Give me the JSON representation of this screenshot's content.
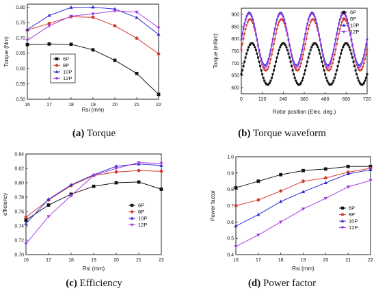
{
  "colors": {
    "6P": "#111111",
    "8P": "#d13b2c",
    "10P": "#2f2fd6",
    "12P": "#a43ee3"
  },
  "captions": [
    {
      "letter": "(a)",
      "text": " Torque"
    },
    {
      "letter": "(b)",
      "text": " Torque waveform"
    },
    {
      "letter": "(c)",
      "text": " Efficiency"
    },
    {
      "letter": "(d)",
      "text": " Power factor"
    }
  ],
  "chart_data": [
    {
      "type": "line",
      "title": "",
      "xlabel": "Rsi (mm)",
      "ylabel": "Torque (Nm)",
      "xlim": [
        16,
        22
      ],
      "ylim": [
        0.5,
        0.81
      ],
      "xticks": [
        16,
        17,
        18,
        19,
        20,
        21,
        22
      ],
      "yticks": [
        0.5,
        0.55,
        0.6,
        0.65,
        0.7,
        0.75,
        0.8
      ],
      "ytick_labels": [
        "0.50",
        "0.55",
        "0.60",
        "0.65",
        "0.70",
        "0.75",
        "0.80"
      ],
      "grid": false,
      "legend": "center-left",
      "x": [
        16,
        17,
        18,
        19,
        20,
        21,
        22
      ],
      "series": [
        {
          "name": "6P",
          "marker": "square",
          "values": [
            0.678,
            0.68,
            0.679,
            0.661,
            0.627,
            0.584,
            0.516
          ]
        },
        {
          "name": "8P",
          "marker": "circle",
          "values": [
            0.725,
            0.747,
            0.769,
            0.767,
            0.739,
            0.699,
            0.648
          ]
        },
        {
          "name": "10P",
          "marker": "triangle-up",
          "values": [
            0.727,
            0.773,
            0.799,
            0.8,
            0.794,
            0.766,
            0.711
          ]
        },
        {
          "name": "12P",
          "marker": "triangle-down",
          "values": [
            0.692,
            0.739,
            0.771,
            0.778,
            0.788,
            0.784,
            0.733
          ]
        }
      ]
    },
    {
      "type": "line",
      "title": "",
      "xlabel": "Rotor position (Elec. deg.)",
      "ylabel": "Torque (mNm)",
      "xlim": [
        0,
        720
      ],
      "ylim": [
        575,
        925
      ],
      "xticks": [
        0,
        120,
        240,
        360,
        480,
        600,
        720
      ],
      "yticks": [
        600,
        650,
        700,
        750,
        800,
        850,
        900
      ],
      "grid": false,
      "legend": "top-right",
      "period_deg": 180,
      "series": [
        {
          "name": "6P",
          "marker": "square",
          "mean": 697,
          "amplitude": 85,
          "peak_deg": 60
        },
        {
          "name": "8P",
          "marker": "circle",
          "mean": 775,
          "amplitude": 105,
          "peak_deg": 50
        },
        {
          "name": "10P",
          "marker": "triangle-up",
          "mean": 800,
          "amplitude": 108,
          "peak_deg": 45
        },
        {
          "name": "12P",
          "marker": "triangle-down",
          "mean": 792,
          "amplitude": 110,
          "peak_deg": 45
        }
      ]
    },
    {
      "type": "line",
      "title": "",
      "xlabel": "Rsi (mm)",
      "ylabel": "efficiency",
      "xlim": [
        16,
        22
      ],
      "ylim": [
        0.7,
        0.84
      ],
      "xticks": [
        16,
        17,
        18,
        19,
        20,
        21,
        22
      ],
      "yticks": [
        0.7,
        0.72,
        0.74,
        0.76,
        0.78,
        0.8,
        0.82,
        0.84
      ],
      "ytick_labels": [
        "0.70",
        "0.72",
        "0.74",
        "0.76",
        "0.78",
        "0.80",
        "0.82",
        "0.84"
      ],
      "grid": false,
      "legend": "bottom-right",
      "x": [
        16,
        17,
        18,
        19,
        20,
        21,
        22
      ],
      "series": [
        {
          "name": "6P",
          "marker": "square",
          "values": [
            0.748,
            0.769,
            0.784,
            0.795,
            0.8,
            0.801,
            0.791
          ]
        },
        {
          "name": "8P",
          "marker": "circle",
          "values": [
            0.752,
            0.776,
            0.796,
            0.81,
            0.815,
            0.817,
            0.816
          ]
        },
        {
          "name": "10P",
          "marker": "triangle-up",
          "values": [
            0.743,
            0.777,
            0.797,
            0.811,
            0.823,
            0.826,
            0.824
          ]
        },
        {
          "name": "12P",
          "marker": "triangle-down",
          "values": [
            0.715,
            0.753,
            0.782,
            0.81,
            0.82,
            0.828,
            0.827
          ]
        }
      ]
    },
    {
      "type": "line",
      "title": "",
      "xlabel": "Rsi (mm)",
      "ylabel": "Power factor",
      "xlim": [
        16,
        22
      ],
      "ylim": [
        0.4,
        1.0
      ],
      "xticks": [
        16,
        17,
        18,
        19,
        20,
        21,
        22
      ],
      "yticks": [
        0.4,
        0.5,
        0.6,
        0.7,
        0.8,
        0.9,
        1.0
      ],
      "ytick_labels": [
        "0.4",
        "0.5",
        "0.6",
        "0.7",
        "0.8",
        "0.9",
        "1.0"
      ],
      "grid": false,
      "legend": "bottom-right",
      "x": [
        16,
        17,
        18,
        19,
        20,
        21,
        22
      ],
      "series": [
        {
          "name": "6P",
          "marker": "square",
          "values": [
            0.81,
            0.85,
            0.89,
            0.915,
            0.925,
            0.94,
            0.94
          ]
        },
        {
          "name": "8P",
          "marker": "circle",
          "values": [
            0.7,
            0.735,
            0.79,
            0.85,
            0.87,
            0.905,
            0.93
          ]
        },
        {
          "name": "10P",
          "marker": "triangle-up",
          "values": [
            0.575,
            0.645,
            0.725,
            0.785,
            0.84,
            0.895,
            0.92
          ]
        },
        {
          "name": "12P",
          "marker": "triangle-down",
          "values": [
            0.45,
            0.52,
            0.6,
            0.68,
            0.745,
            0.815,
            0.855
          ]
        }
      ]
    }
  ]
}
